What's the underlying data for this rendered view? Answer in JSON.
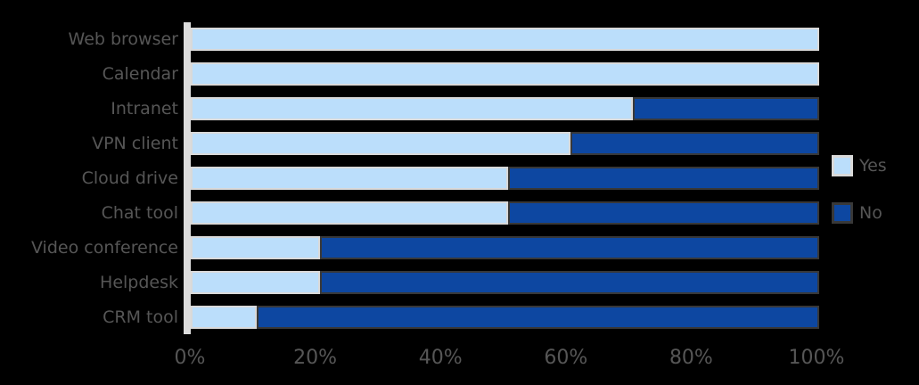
{
  "chart_data": {
    "type": "bar",
    "orientation": "horizontal",
    "stacked_100_percent": true,
    "title": "",
    "xlabel": "",
    "ylabel": "",
    "grid": false,
    "legend_position": "right-middle",
    "xlim": [
      0,
      100
    ],
    "x_ticks": [
      "0%",
      "20%",
      "40%",
      "60%",
      "80%",
      "100%"
    ],
    "categories": [
      "Web browser",
      "Calendar",
      "Intranet",
      "VPN client",
      "Cloud drive",
      "Chat tool",
      "Video conference",
      "Helpdesk",
      "CRM tool"
    ],
    "series": [
      {
        "name": "Yes",
        "color": "#BBDEFB",
        "values": [
          100,
          100,
          70,
          60,
          50,
          50,
          20,
          20,
          10
        ]
      },
      {
        "name": "No",
        "color": "#0D47A1",
        "values": [
          0,
          0,
          30,
          40,
          50,
          50,
          80,
          80,
          90
        ]
      }
    ]
  },
  "colors": {
    "background": "#000000",
    "axis_spine": "#DCDCDC",
    "text": "#565656",
    "light_segment_border": "#D9D9D9",
    "dark_segment_border": "#383838"
  }
}
